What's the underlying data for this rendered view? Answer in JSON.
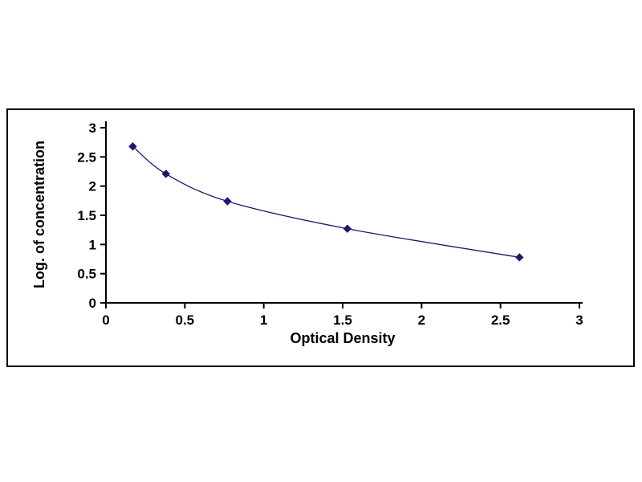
{
  "chart_data": {
    "type": "line",
    "title": "",
    "xlabel": "Optical Density",
    "ylabel": "Log. of concentration",
    "points": [
      {
        "x": 0.17,
        "y": 2.68
      },
      {
        "x": 0.38,
        "y": 2.21
      },
      {
        "x": 0.77,
        "y": 1.74
      },
      {
        "x": 1.53,
        "y": 1.27
      },
      {
        "x": 2.62,
        "y": 0.78
      }
    ],
    "xlim": [
      0,
      3
    ],
    "ylim": [
      0,
      3
    ],
    "xticks": [
      {
        "value": 0,
        "label": "0"
      },
      {
        "value": 0.5,
        "label": "0.5"
      },
      {
        "value": 1,
        "label": "1"
      },
      {
        "value": 1.5,
        "label": "1.5"
      },
      {
        "value": 2,
        "label": "2"
      },
      {
        "value": 2.5,
        "label": "2.5"
      },
      {
        "value": 3,
        "label": "3"
      }
    ],
    "yticks": [
      {
        "value": 0,
        "label": "0"
      },
      {
        "value": 0.5,
        "label": "0.5"
      },
      {
        "value": 1,
        "label": "1"
      },
      {
        "value": 1.5,
        "label": "1.5"
      },
      {
        "value": 2,
        "label": "2"
      },
      {
        "value": 2.5,
        "label": "2.5"
      },
      {
        "value": 3,
        "label": "3"
      }
    ],
    "grid": false,
    "legend": false,
    "marker": "diamond",
    "series_color": "#191970",
    "axis_color": "#000000"
  }
}
